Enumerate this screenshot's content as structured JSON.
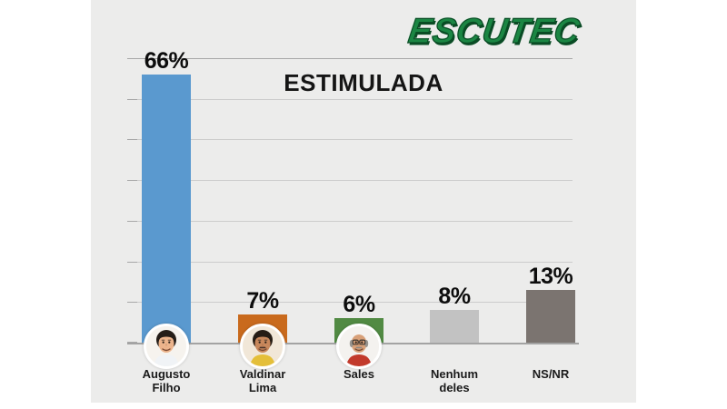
{
  "page": {
    "background": "#ffffff",
    "panel_background": "#ececeb"
  },
  "logo": {
    "text": "ESCUTEC",
    "color": "#1b8643",
    "outline_color": "#0a4c25"
  },
  "chart_data": {
    "type": "bar",
    "title": "ESTIMULADA",
    "xlabel": "",
    "ylabel": "",
    "unit": "%",
    "ylim": [
      0,
      70
    ],
    "gridline_step": 10,
    "grid": true,
    "legend": "none",
    "categories": [
      "Augusto Filho",
      "Valdinar Lima",
      "Sales",
      "Nenhum deles",
      "NS/NR"
    ],
    "values": [
      66,
      7,
      6,
      8,
      13
    ],
    "grid_color": "#cccccc",
    "axis_color": "#a3a3a3",
    "bars": [
      {
        "label_lines": [
          "Augusto",
          "Filho"
        ],
        "value": 66,
        "value_label": "66%",
        "color": "#5a99cf",
        "avatar": {
          "name": "candidate-photo-augusto-filho",
          "bg": "#f6f3ee",
          "skin": "#ecb48c",
          "hair": "#241d18",
          "hair_style": "full",
          "shirt": "#f0f3f6",
          "glasses": false,
          "mustache": false,
          "mustache_color": ""
        }
      },
      {
        "label_lines": [
          "Valdinar",
          "Lima"
        ],
        "value": 7,
        "value_label": "7%",
        "color": "#c96a1d",
        "avatar": {
          "name": "candidate-photo-valdinar-lima",
          "bg": "#f1e7d8",
          "skin": "#c9885c",
          "hair": "#261c14",
          "hair_style": "full",
          "shirt": "#e4bf3a",
          "glasses": false,
          "mustache": true,
          "mustache_color": "#4a342a"
        }
      },
      {
        "label_lines": [
          "Sales"
        ],
        "value": 6,
        "value_label": "6%",
        "color": "#518a43",
        "avatar": {
          "name": "candidate-photo-sales",
          "bg": "#f4f2ef",
          "skin": "#d8a078",
          "hair": "#98948e",
          "hair_style": "balding",
          "shirt": "#c23a2c",
          "glasses": true,
          "mustache": true,
          "mustache_color": "#8d8984"
        }
      },
      {
        "label_lines": [
          "Nenhum",
          "deles"
        ],
        "value": 8,
        "value_label": "8%",
        "color": "#c2c2c2",
        "avatar": null
      },
      {
        "label_lines": [
          "NS/NR"
        ],
        "value": 13,
        "value_label": "13%",
        "color": "#7b7470",
        "avatar": null
      }
    ]
  }
}
